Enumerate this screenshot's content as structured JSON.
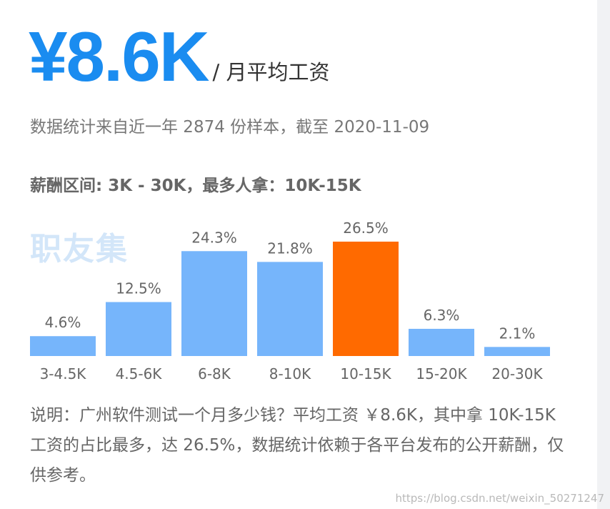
{
  "header": {
    "salary": "¥8.6K",
    "unit": "/ 月平均工资",
    "subline": "数据统计来自近一年 2874 份样本，截至 2020-11-09",
    "range_text": "薪酬区间: 3K - 30K，最多人拿：10K-15K",
    "logo_text": "职友集"
  },
  "colors": {
    "bar": "#76b5fb",
    "highlight": "#ff6a00",
    "accent": "#1a8cf0"
  },
  "chart_data": {
    "type": "bar",
    "categories": [
      "3-4.5K",
      "4.5-6K",
      "6-8K",
      "8-10K",
      "10-15K",
      "15-20K",
      "20-30K"
    ],
    "values": [
      4.6,
      12.5,
      24.3,
      21.8,
      26.5,
      6.3,
      2.1
    ],
    "value_labels": [
      "4.6%",
      "12.5%",
      "24.3%",
      "21.8%",
      "26.5%",
      "6.3%",
      "2.1%"
    ],
    "highlight_category": "10-15K",
    "title": "",
    "xlabel": "",
    "ylabel": "",
    "ylim": [
      0,
      26.5
    ],
    "grid": false
  },
  "note": {
    "text": "说明：广州软件测试一个月多少钱？平均工资 ￥8.6K，其中拿 10K-15K 工资的占比最多，达 26.5%，数据统计依赖于各平台发布的公开薪酬，仅供参考。"
  },
  "footer": {
    "source": "https://blog.csdn.net/weixin_50271247"
  }
}
